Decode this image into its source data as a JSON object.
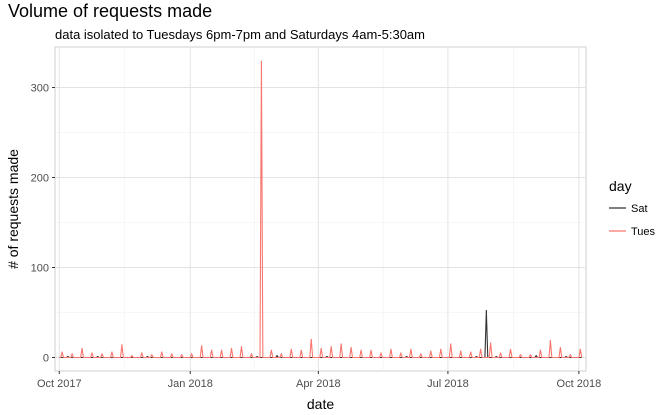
{
  "chart_data": {
    "type": "line",
    "title": "Volume of requests made",
    "subtitle": "data isolated to Tuesdays 6pm-7pm and Saturdays 4am-5:30am",
    "xlabel": "date",
    "ylabel": "# of requests made",
    "x_ticks": [
      "Oct 2017",
      "Jan 2018",
      "Apr 2018",
      "Jul 2018",
      "Oct 2018"
    ],
    "y_ticks": [
      0,
      100,
      200,
      300
    ],
    "xlim": [
      "2017-09-28",
      "2018-10-06"
    ],
    "ylim": [
      -15,
      345
    ],
    "legend": {
      "title": "day",
      "position": "right"
    },
    "grid": true,
    "series": [
      {
        "name": "Sat",
        "color": "#333333",
        "points": [
          [
            "2017-10-07",
            0
          ],
          [
            "2017-10-07",
            1
          ],
          [
            "2017-10-14",
            0
          ],
          [
            "2017-10-28",
            1
          ],
          [
            "2017-11-18",
            0
          ],
          [
            "2017-12-02",
            1
          ],
          [
            "2018-01-06",
            0
          ],
          [
            "2018-02-17",
            1
          ],
          [
            "2018-03-03",
            2
          ],
          [
            "2018-04-07",
            1
          ],
          [
            "2018-05-05",
            0
          ],
          [
            "2018-06-02",
            1
          ],
          [
            "2018-06-30",
            0
          ],
          [
            "2018-07-21",
            1
          ],
          [
            "2018-07-28",
            52
          ],
          [
            "2018-08-04",
            1
          ],
          [
            "2018-08-18",
            0
          ],
          [
            "2018-09-01",
            2
          ],
          [
            "2018-09-22",
            1
          ],
          [
            "2018-09-29",
            0
          ]
        ]
      },
      {
        "name": "Tues",
        "color": "#f8766d",
        "points": [
          [
            "2017-10-03",
            6
          ],
          [
            "2017-10-10",
            4
          ],
          [
            "2017-10-17",
            10
          ],
          [
            "2017-10-24",
            5
          ],
          [
            "2017-10-31",
            4
          ],
          [
            "2017-11-07",
            6
          ],
          [
            "2017-11-14",
            14
          ],
          [
            "2017-11-21",
            2
          ],
          [
            "2017-11-28",
            5
          ],
          [
            "2017-12-05",
            3
          ],
          [
            "2017-12-12",
            6
          ],
          [
            "2017-12-19",
            4
          ],
          [
            "2017-12-26",
            3
          ],
          [
            "2018-01-02",
            4
          ],
          [
            "2018-01-09",
            13
          ],
          [
            "2018-01-16",
            8
          ],
          [
            "2018-01-23",
            8
          ],
          [
            "2018-01-30",
            10
          ],
          [
            "2018-02-06",
            12
          ],
          [
            "2018-02-13",
            4
          ],
          [
            "2018-02-20",
            329
          ],
          [
            "2018-02-27",
            8
          ],
          [
            "2018-03-06",
            4
          ],
          [
            "2018-03-13",
            9
          ],
          [
            "2018-03-20",
            8
          ],
          [
            "2018-03-27",
            20
          ],
          [
            "2018-04-03",
            10
          ],
          [
            "2018-04-10",
            12
          ],
          [
            "2018-04-17",
            15
          ],
          [
            "2018-04-24",
            11
          ],
          [
            "2018-05-01",
            8
          ],
          [
            "2018-05-08",
            8
          ],
          [
            "2018-05-15",
            5
          ],
          [
            "2018-05-22",
            9
          ],
          [
            "2018-05-29",
            5
          ],
          [
            "2018-06-05",
            9
          ],
          [
            "2018-06-12",
            4
          ],
          [
            "2018-06-19",
            7
          ],
          [
            "2018-06-26",
            9
          ],
          [
            "2018-07-03",
            15
          ],
          [
            "2018-07-10",
            7
          ],
          [
            "2018-07-17",
            6
          ],
          [
            "2018-07-24",
            9
          ],
          [
            "2018-07-31",
            16
          ],
          [
            "2018-08-07",
            5
          ],
          [
            "2018-08-14",
            9
          ],
          [
            "2018-08-21",
            3
          ],
          [
            "2018-08-28",
            3
          ],
          [
            "2018-09-04",
            8
          ],
          [
            "2018-09-11",
            19
          ],
          [
            "2018-09-18",
            11
          ],
          [
            "2018-09-25",
            3
          ],
          [
            "2018-10-02",
            9
          ]
        ]
      }
    ]
  }
}
